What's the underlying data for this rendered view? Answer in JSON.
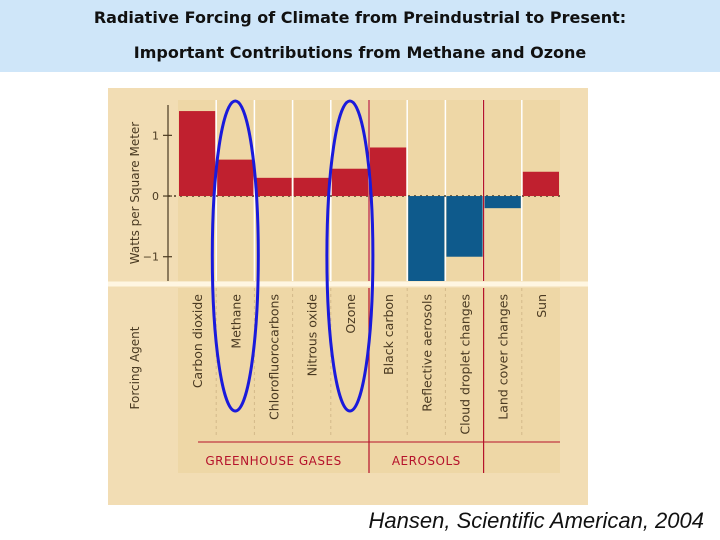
{
  "slide": {
    "title_line1": "Radiative Forcing of Climate from Preindustrial to Present:",
    "title_line2": "Important Contributions from Methane and Ozone",
    "caption": "Hansen, Scientific American, 2004",
    "highlight_color": "#1a1adb"
  },
  "chart_data": {
    "type": "bar",
    "ylabel": "Watts per Square Meter",
    "xlabel": "Forcing Agent",
    "ylim": [
      -1.4,
      1.5
    ],
    "yticks": [
      {
        "value": 1,
        "label": "1"
      },
      {
        "value": 0,
        "label": "0"
      },
      {
        "value": -1,
        "label": "−1"
      }
    ],
    "categories": [
      "Carbon dioxide",
      "Methane",
      "Chlorofluorocarbons",
      "Nitrous oxide",
      "Ozone",
      "Black carbon",
      "Reflective aerosols",
      "Cloud droplet changes",
      "Land cover changes",
      "Sun"
    ],
    "values": [
      1.4,
      0.6,
      0.3,
      0.3,
      0.45,
      0.8,
      -1.4,
      -1.0,
      -0.2,
      0.4
    ],
    "groups": [
      {
        "label": "GREENHOUSE GASES",
        "categories": [
          "Carbon dioxide",
          "Methane",
          "Chlorofluorocarbons",
          "Nitrous oxide",
          "Ozone"
        ]
      },
      {
        "label": "AEROSOLS",
        "categories": [
          "Black carbon",
          "Reflective aerosols",
          "Cloud droplet changes"
        ]
      }
    ],
    "highlighted": [
      "Methane",
      "Ozone"
    ],
    "colors": {
      "positive": "#c0202f",
      "negative": "#0e5a8c",
      "background": "#f2ddb4",
      "panel": "#eed7a6",
      "divider": "#b5122b",
      "group_label": "#b5122b",
      "text": "#4a3a22"
    }
  }
}
